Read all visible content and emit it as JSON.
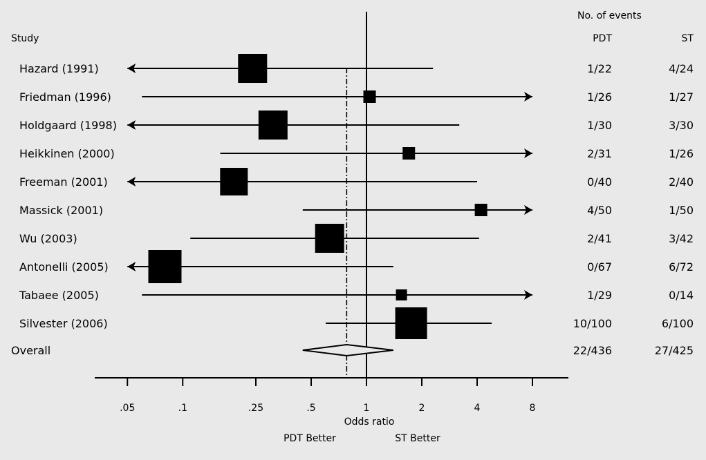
{
  "chart_data": {
    "type": "forest",
    "x_scale": "log",
    "xlim": [
      0.04,
      8
    ],
    "x_ticks": [
      0.05,
      0.1,
      0.25,
      0.5,
      1,
      2,
      4,
      8
    ],
    "x_tick_labels": [
      ".05",
      ".1",
      ".25",
      ".5",
      "1",
      "2",
      "4",
      "8"
    ],
    "xlabel": "Odds ratio",
    "left_direction_label": "PDT Better",
    "right_direction_label": "ST Better",
    "study_header": "Study",
    "events_header": "No. of events",
    "columns": [
      "PDT",
      "ST"
    ],
    "reference_line": 1,
    "pooled_line": 0.78,
    "studies": [
      {
        "name": "Hazard (1991)",
        "or": 0.24,
        "lower": 0.05,
        "upper": 2.3,
        "lower_arrow": true,
        "upper_arrow": false,
        "weight": 1.3,
        "pdt": "1/22",
        "st": "4/24"
      },
      {
        "name": "Friedman (1996)",
        "or": 1.04,
        "lower": 0.06,
        "upper": 8,
        "lower_arrow": false,
        "upper_arrow": true,
        "weight": 0.6,
        "pdt": "1/26",
        "st": "1/27"
      },
      {
        "name": "Holdgaard (1998)",
        "or": 0.31,
        "lower": 0.05,
        "upper": 3.2,
        "lower_arrow": true,
        "upper_arrow": false,
        "weight": 1.2,
        "pdt": "1/30",
        "st": "3/30"
      },
      {
        "name": "Heikkinen (2000)",
        "or": 1.7,
        "lower": 0.16,
        "upper": 8,
        "lower_arrow": false,
        "upper_arrow": true,
        "weight": 0.6,
        "pdt": "2/31",
        "st": "1/26"
      },
      {
        "name": "Freeman (2001)",
        "or": 0.19,
        "lower": 0.05,
        "upper": 4,
        "lower_arrow": true,
        "upper_arrow": false,
        "weight": 1.1,
        "pdt": "0/40",
        "st": "2/40"
      },
      {
        "name": "Massick (2001)",
        "or": 4.2,
        "lower": 0.45,
        "upper": 8,
        "lower_arrow": false,
        "upper_arrow": true,
        "weight": 0.6,
        "pdt": "4/50",
        "st": "1/50"
      },
      {
        "name": "Wu (2003)",
        "or": 0.63,
        "lower": 0.11,
        "upper": 4.1,
        "lower_arrow": false,
        "upper_arrow": false,
        "weight": 1.2,
        "pdt": "2/41",
        "st": "3/42"
      },
      {
        "name": "Antonelli (2005)",
        "or": 0.08,
        "lower": 0.05,
        "upper": 1.4,
        "lower_arrow": true,
        "upper_arrow": false,
        "weight": 1.6,
        "pdt": "0/67",
        "st": "6/72"
      },
      {
        "name": "Tabaee (2005)",
        "or": 1.55,
        "lower": 0.06,
        "upper": 8,
        "lower_arrow": false,
        "upper_arrow": true,
        "weight": 0.5,
        "pdt": "1/29",
        "st": "0/14"
      },
      {
        "name": "Silvester (2006)",
        "or": 1.75,
        "lower": 0.6,
        "upper": 4.8,
        "lower_arrow": false,
        "upper_arrow": false,
        "weight": 1.5,
        "pdt": "10/100",
        "st": "6/100"
      }
    ],
    "overall": {
      "name": "Overall",
      "or": 0.78,
      "lower": 0.45,
      "upper": 1.4,
      "pdt": "22/436",
      "st": "27/425"
    }
  }
}
